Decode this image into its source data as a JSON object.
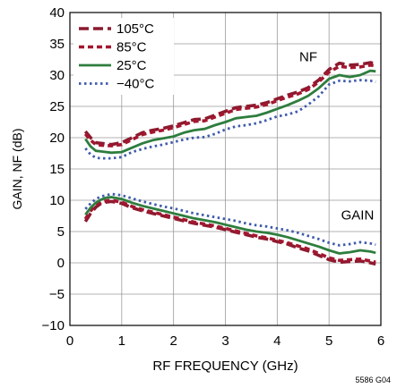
{
  "chart_data": {
    "type": "line",
    "xlabel": "RF FREQUENCY (GHz)",
    "ylabel": "GAIN, NF (dB)",
    "xlim": [
      0,
      6
    ],
    "ylim": [
      -10,
      40
    ],
    "x_ticks": [
      0,
      1,
      2,
      3,
      4,
      5,
      6
    ],
    "y_ticks": [
      -10,
      -5,
      0,
      5,
      10,
      15,
      20,
      25,
      30,
      35,
      40
    ],
    "x_tick_labels": [
      "0",
      "1",
      "2",
      "3",
      "4",
      "5",
      "6"
    ],
    "y_tick_labels": [
      "−10",
      "−5",
      "0",
      "5",
      "10",
      "15",
      "20",
      "25",
      "30",
      "35",
      "40"
    ],
    "grid": true,
    "legend_position": "top-left",
    "annotations": [
      {
        "text": "NF",
        "x": 4.6,
        "y": 32.2
      },
      {
        "text": "GAIN",
        "x": 5.55,
        "y": 6.9
      }
    ],
    "figure_id": "5586 G04",
    "series": [
      {
        "name": "105°C",
        "group": "NF",
        "color": "#8B1A2E",
        "dash": "long",
        "x": [
          0.3,
          0.4,
          0.5,
          0.6,
          0.8,
          1.0,
          1.2,
          1.4,
          1.6,
          1.8,
          2.0,
          2.2,
          2.4,
          2.6,
          2.8,
          3.0,
          3.2,
          3.4,
          3.6,
          3.8,
          4.0,
          4.2,
          4.4,
          4.6,
          4.8,
          5.0,
          5.2,
          5.4,
          5.6,
          5.8,
          5.9
        ],
        "y": [
          21.0,
          20.0,
          19.2,
          19.1,
          18.9,
          19.2,
          20.0,
          20.8,
          21.2,
          21.5,
          21.9,
          22.4,
          22.9,
          23.0,
          23.6,
          24.2,
          24.8,
          25.0,
          25.2,
          25.6,
          26.2,
          26.8,
          27.3,
          28.0,
          29.2,
          30.9,
          31.9,
          31.6,
          31.7,
          32.0,
          31.8
        ]
      },
      {
        "name": "85°C",
        "group": "NF",
        "color": "#A3162F",
        "dash": "short",
        "x": [
          0.3,
          0.4,
          0.5,
          0.6,
          0.8,
          1.0,
          1.2,
          1.4,
          1.6,
          1.8,
          2.0,
          2.2,
          2.4,
          2.6,
          2.8,
          3.0,
          3.2,
          3.4,
          3.6,
          3.8,
          4.0,
          4.2,
          4.4,
          4.6,
          4.8,
          5.0,
          5.2,
          5.4,
          5.6,
          5.8,
          5.9
        ],
        "y": [
          20.6,
          19.6,
          18.9,
          18.8,
          18.7,
          18.9,
          19.7,
          20.5,
          20.9,
          21.2,
          21.6,
          22.1,
          22.6,
          22.7,
          23.3,
          23.9,
          24.5,
          24.7,
          24.9,
          25.3,
          25.9,
          26.5,
          27.0,
          27.7,
          28.9,
          30.5,
          31.4,
          31.2,
          31.3,
          31.6,
          31.5
        ]
      },
      {
        "name": "25°C",
        "group": "NF",
        "color": "#2E7D3E",
        "dash": "solid",
        "x": [
          0.3,
          0.4,
          0.5,
          0.6,
          0.8,
          1.0,
          1.2,
          1.4,
          1.6,
          1.8,
          2.0,
          2.2,
          2.4,
          2.6,
          2.8,
          3.0,
          3.2,
          3.4,
          3.6,
          3.8,
          4.0,
          4.2,
          4.4,
          4.6,
          4.8,
          5.0,
          5.2,
          5.4,
          5.6,
          5.8,
          5.9
        ],
        "y": [
          19.8,
          18.6,
          17.9,
          17.8,
          17.6,
          17.7,
          18.4,
          19.1,
          19.6,
          19.9,
          20.2,
          20.8,
          21.2,
          21.4,
          22.0,
          22.5,
          23.1,
          23.3,
          23.5,
          24.0,
          24.6,
          25.2,
          25.9,
          26.7,
          27.9,
          29.4,
          30.0,
          29.7,
          30.0,
          30.7,
          30.6
        ]
      },
      {
        "name": "−40°C",
        "group": "NF",
        "color": "#3F5BAA",
        "dash": "dot",
        "x": [
          0.3,
          0.4,
          0.5,
          0.6,
          0.8,
          1.0,
          1.2,
          1.4,
          1.6,
          1.8,
          2.0,
          2.2,
          2.4,
          2.6,
          2.8,
          3.0,
          3.2,
          3.4,
          3.6,
          3.8,
          4.0,
          4.2,
          4.4,
          4.6,
          4.8,
          5.0,
          5.2,
          5.4,
          5.6,
          5.8,
          5.9
        ],
        "y": [
          18.3,
          17.3,
          16.8,
          16.7,
          16.7,
          16.9,
          17.7,
          18.2,
          18.6,
          18.9,
          19.3,
          19.7,
          20.0,
          20.1,
          20.6,
          21.3,
          21.8,
          22.0,
          22.3,
          22.8,
          23.4,
          23.7,
          24.2,
          25.3,
          26.6,
          28.5,
          29.1,
          29.0,
          29.2,
          29.1,
          28.9
        ]
      },
      {
        "group": "GAIN",
        "color": "#8B1A2E",
        "dash": "long",
        "x": [
          0.3,
          0.4,
          0.5,
          0.6,
          0.7,
          0.8,
          1.0,
          1.2,
          1.4,
          1.6,
          1.8,
          2.0,
          2.2,
          2.4,
          2.6,
          2.8,
          3.0,
          3.2,
          3.4,
          3.6,
          3.8,
          4.0,
          4.2,
          4.4,
          4.6,
          4.8,
          5.0,
          5.2,
          5.4,
          5.6,
          5.8,
          5.9
        ],
        "y": [
          6.6,
          7.9,
          8.9,
          9.5,
          9.7,
          9.8,
          9.5,
          8.8,
          8.3,
          7.9,
          7.5,
          7.1,
          6.7,
          6.3,
          6.0,
          5.7,
          5.3,
          4.9,
          4.5,
          4.1,
          3.8,
          3.4,
          3.0,
          2.4,
          1.9,
          1.2,
          0.5,
          0.1,
          0.2,
          0.3,
          0.0,
          -0.2
        ]
      },
      {
        "group": "GAIN",
        "color": "#A3162F",
        "dash": "short",
        "x": [
          0.3,
          0.4,
          0.5,
          0.6,
          0.7,
          0.8,
          1.0,
          1.2,
          1.4,
          1.6,
          1.8,
          2.0,
          2.2,
          2.4,
          2.6,
          2.8,
          3.0,
          3.2,
          3.4,
          3.6,
          3.8,
          4.0,
          4.2,
          4.4,
          4.6,
          4.8,
          5.0,
          5.2,
          5.4,
          5.6,
          5.8,
          5.9
        ],
        "y": [
          7.0,
          8.3,
          9.2,
          9.7,
          9.9,
          10.0,
          9.7,
          9.0,
          8.5,
          8.1,
          7.7,
          7.3,
          6.9,
          6.5,
          6.2,
          5.9,
          5.5,
          5.1,
          4.7,
          4.3,
          4.0,
          3.6,
          3.2,
          2.7,
          2.2,
          1.5,
          0.8,
          0.4,
          0.5,
          0.6,
          0.3,
          0.1
        ]
      },
      {
        "group": "GAIN",
        "color": "#2E7D3E",
        "dash": "solid",
        "x": [
          0.3,
          0.4,
          0.5,
          0.6,
          0.7,
          0.8,
          1.0,
          1.2,
          1.4,
          1.6,
          1.8,
          2.0,
          2.2,
          2.4,
          2.6,
          2.8,
          3.0,
          3.2,
          3.4,
          3.6,
          3.8,
          4.0,
          4.2,
          4.4,
          4.6,
          4.8,
          5.0,
          5.2,
          5.4,
          5.6,
          5.8,
          5.9
        ],
        "y": [
          7.7,
          8.8,
          9.6,
          10.1,
          10.4,
          10.5,
          10.2,
          9.6,
          9.1,
          8.7,
          8.3,
          7.9,
          7.5,
          7.1,
          6.8,
          6.5,
          6.1,
          5.7,
          5.3,
          5.0,
          4.8,
          4.5,
          4.1,
          3.6,
          3.1,
          2.6,
          2.0,
          1.5,
          1.7,
          2.0,
          1.8,
          1.6
        ]
      },
      {
        "group": "GAIN",
        "color": "#3F5BAA",
        "dash": "dot",
        "x": [
          0.3,
          0.4,
          0.5,
          0.6,
          0.7,
          0.8,
          1.0,
          1.2,
          1.4,
          1.6,
          1.8,
          2.0,
          2.2,
          2.4,
          2.6,
          2.8,
          3.0,
          3.2,
          3.4,
          3.6,
          3.8,
          4.0,
          4.2,
          4.4,
          4.6,
          4.8,
          5.0,
          5.2,
          5.4,
          5.6,
          5.8,
          5.9
        ],
        "y": [
          8.6,
          9.5,
          10.2,
          10.6,
          10.8,
          11.0,
          10.8,
          10.3,
          9.8,
          9.4,
          9.0,
          8.7,
          8.3,
          7.9,
          7.6,
          7.3,
          7.0,
          6.7,
          6.3,
          6.0,
          5.8,
          5.5,
          5.2,
          4.8,
          4.3,
          3.8,
          3.2,
          2.8,
          3.0,
          3.3,
          3.1,
          2.9
        ]
      }
    ]
  }
}
